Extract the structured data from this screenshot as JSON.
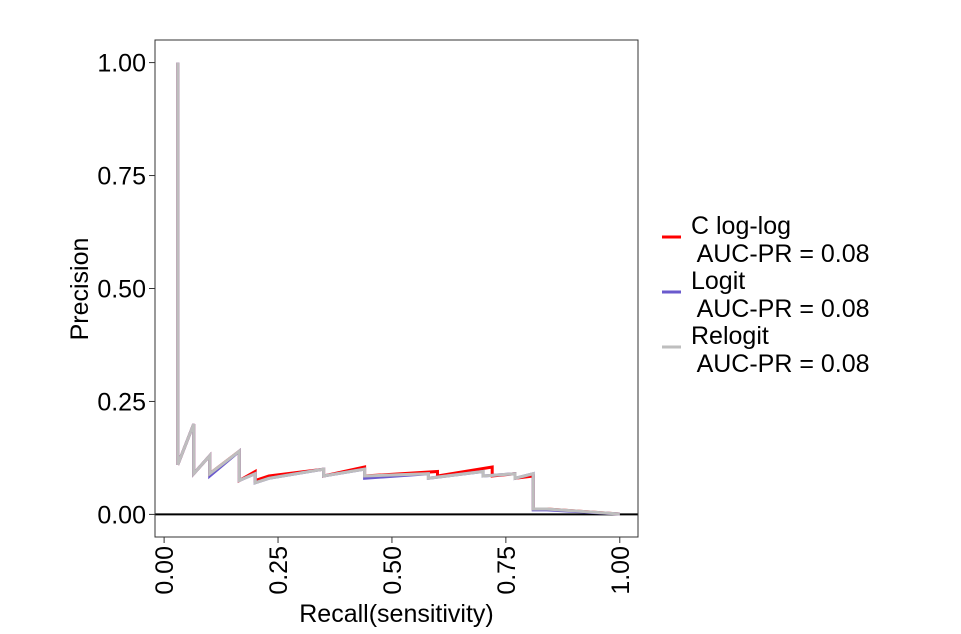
{
  "chart_data": {
    "type": "line",
    "title": "",
    "xlabel": "Recall(sensitivity)",
    "ylabel": "Precision",
    "xlim": [
      -0.02,
      1.04
    ],
    "ylim": [
      -0.05,
      1.05
    ],
    "xticks": [
      0.0,
      0.25,
      0.5,
      0.75,
      1.0
    ],
    "xtick_labels": [
      "0.00",
      "0.25",
      "0.50",
      "0.75",
      "1.00"
    ],
    "yticks": [
      0.0,
      0.25,
      0.5,
      0.75,
      1.0
    ],
    "ytick_labels": [
      "0.00",
      "0.25",
      "0.50",
      "0.75",
      "1.00"
    ],
    "grid": false,
    "legend_position": "right",
    "reference_line": {
      "y": 0,
      "color": "#000000"
    },
    "series": [
      {
        "name": "C log-log",
        "legend_line1": "C log-log",
        "legend_line2": " AUC-PR = 0.08",
        "color": "#ff0000",
        "points": [
          [
            0.03,
            1.0
          ],
          [
            0.03,
            0.11
          ],
          [
            0.065,
            0.2
          ],
          [
            0.065,
            0.09
          ],
          [
            0.1,
            0.13
          ],
          [
            0.1,
            0.09
          ],
          [
            0.165,
            0.14
          ],
          [
            0.165,
            0.075
          ],
          [
            0.2,
            0.095
          ],
          [
            0.2,
            0.075
          ],
          [
            0.23,
            0.085
          ],
          [
            0.35,
            0.1
          ],
          [
            0.35,
            0.085
          ],
          [
            0.44,
            0.105
          ],
          [
            0.44,
            0.085
          ],
          [
            0.6,
            0.095
          ],
          [
            0.6,
            0.085
          ],
          [
            0.72,
            0.105
          ],
          [
            0.72,
            0.085
          ],
          [
            0.77,
            0.09
          ],
          [
            0.77,
            0.08
          ],
          [
            0.81,
            0.085
          ],
          [
            0.81,
            0.012
          ],
          [
            0.84,
            0.012
          ],
          [
            1.0,
            0.001
          ]
        ]
      },
      {
        "name": "Logit",
        "legend_line1": "Logit",
        "legend_line2": " AUC-PR = 0.08",
        "color": "#6a5acd",
        "points": [
          [
            0.03,
            1.0
          ],
          [
            0.03,
            0.11
          ],
          [
            0.065,
            0.2
          ],
          [
            0.065,
            0.09
          ],
          [
            0.1,
            0.13
          ],
          [
            0.1,
            0.085
          ],
          [
            0.165,
            0.14
          ],
          [
            0.165,
            0.075
          ],
          [
            0.2,
            0.09
          ],
          [
            0.2,
            0.07
          ],
          [
            0.23,
            0.08
          ],
          [
            0.35,
            0.1
          ],
          [
            0.35,
            0.085
          ],
          [
            0.44,
            0.1
          ],
          [
            0.44,
            0.08
          ],
          [
            0.58,
            0.09
          ],
          [
            0.58,
            0.08
          ],
          [
            0.7,
            0.095
          ],
          [
            0.7,
            0.085
          ],
          [
            0.77,
            0.09
          ],
          [
            0.77,
            0.08
          ],
          [
            0.81,
            0.09
          ],
          [
            0.81,
            0.01
          ],
          [
            0.84,
            0.01
          ],
          [
            1.0,
            0.001
          ]
        ]
      },
      {
        "name": "Relogit",
        "legend_line1": "Relogit",
        "legend_line2": " AUC-PR = 0.08",
        "color": "#bebebe",
        "points": [
          [
            0.03,
            1.0
          ],
          [
            0.03,
            0.11
          ],
          [
            0.065,
            0.2
          ],
          [
            0.065,
            0.09
          ],
          [
            0.1,
            0.13
          ],
          [
            0.1,
            0.09
          ],
          [
            0.165,
            0.14
          ],
          [
            0.165,
            0.075
          ],
          [
            0.2,
            0.09
          ],
          [
            0.2,
            0.07
          ],
          [
            0.23,
            0.08
          ],
          [
            0.35,
            0.1
          ],
          [
            0.35,
            0.085
          ],
          [
            0.44,
            0.1
          ],
          [
            0.44,
            0.085
          ],
          [
            0.58,
            0.09
          ],
          [
            0.58,
            0.08
          ],
          [
            0.7,
            0.095
          ],
          [
            0.7,
            0.085
          ],
          [
            0.77,
            0.09
          ],
          [
            0.77,
            0.08
          ],
          [
            0.81,
            0.09
          ],
          [
            0.81,
            0.012
          ],
          [
            0.84,
            0.012
          ],
          [
            1.0,
            0.001
          ]
        ]
      }
    ]
  }
}
